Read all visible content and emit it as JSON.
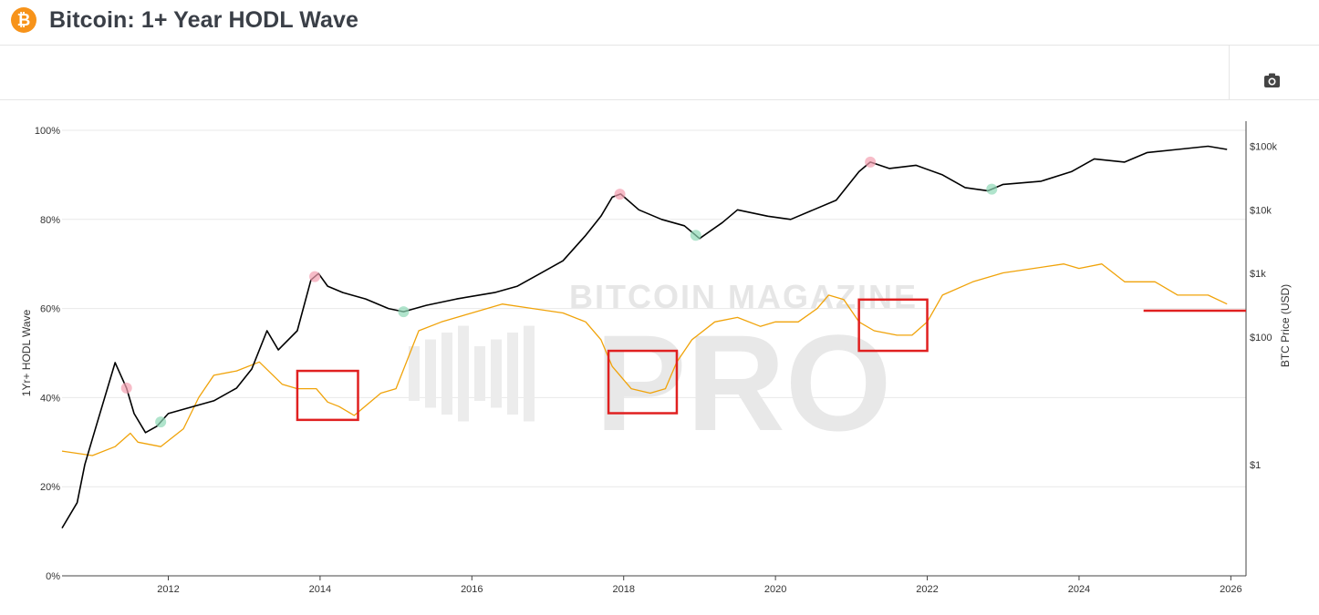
{
  "header": {
    "title": "Bitcoin: 1+ Year HODL Wave",
    "logo_glyph": "₿",
    "logo_color": "#f7931a",
    "screenshot_icon": "camera-icon"
  },
  "chart_data": {
    "type": "line",
    "title": "Bitcoin: 1+ Year HODL Wave",
    "ylabel": "1Yr+ HODL Wave",
    "y2label": "BTC Price (USD)",
    "xlabel": "",
    "xlim": [
      2010.6,
      2026.2
    ],
    "ylim": [
      0,
      100
    ],
    "y2lim_log10": [
      -1.75,
      5.25
    ],
    "y2scale": "log",
    "x_ticks": [
      "2012",
      "2014",
      "2016",
      "2018",
      "2020",
      "2022",
      "2024",
      "2026"
    ],
    "x_tick_values": [
      2012,
      2014,
      2016,
      2018,
      2020,
      2022,
      2024,
      2026
    ],
    "y_ticks": [
      "0%",
      "20%",
      "40%",
      "60%",
      "80%",
      "100%"
    ],
    "y_tick_values": [
      0,
      20,
      40,
      60,
      80,
      100
    ],
    "y2_ticks": [
      "$1",
      "$100",
      "$1k",
      "$10k",
      "$100k"
    ],
    "y2_tick_values": [
      1,
      100,
      1000,
      10000,
      100000
    ],
    "grid": true,
    "watermark": {
      "line1": "BITCOIN MAGAZINE",
      "line2": "PRO"
    },
    "series": [
      {
        "axis": "left",
        "color": "#f0a30a",
        "x": [
          2010.6,
          2011.0,
          2011.3,
          2011.5,
          2011.6,
          2011.9,
          2012.2,
          2012.4,
          2012.6,
          2012.9,
          2013.2,
          2013.5,
          2013.7,
          2013.95,
          2014.1,
          2014.25,
          2014.45,
          2014.8,
          2015.0,
          2015.3,
          2015.6,
          2016.0,
          2016.4,
          2016.8,
          2017.2,
          2017.5,
          2017.7,
          2017.85,
          2018.1,
          2018.35,
          2018.55,
          2018.7,
          2018.9,
          2019.2,
          2019.5,
          2019.8,
          2020.0,
          2020.3,
          2020.55,
          2020.7,
          2020.9,
          2021.1,
          2021.3,
          2021.6,
          2021.8,
          2022.0,
          2022.2,
          2022.6,
          2023.0,
          2023.4,
          2023.8,
          2024.0,
          2024.3,
          2024.6,
          2025.0,
          2025.3,
          2025.7,
          2025.95
        ],
        "y": [
          28,
          27,
          29,
          32,
          30,
          29,
          33,
          40,
          45,
          46,
          48,
          43,
          42,
          42,
          39,
          38,
          36,
          41,
          42,
          55,
          57,
          59,
          61,
          60,
          59,
          57,
          53,
          47,
          42,
          41,
          42,
          48,
          53,
          57,
          58,
          56,
          57,
          57,
          60,
          63,
          62,
          57,
          55,
          54,
          54,
          57,
          63,
          66,
          68,
          69,
          70,
          69,
          70,
          66,
          66,
          63,
          63,
          61
        ]
      },
      {
        "axis": "right",
        "color": "#000000",
        "x": [
          2010.6,
          2010.8,
          2010.9,
          2011.05,
          2011.3,
          2011.45,
          2011.55,
          2011.7,
          2011.85,
          2012.0,
          2012.3,
          2012.6,
          2012.9,
          2013.1,
          2013.3,
          2013.45,
          2013.7,
          2013.88,
          2013.98,
          2014.1,
          2014.3,
          2014.6,
          2014.9,
          2015.1,
          2015.4,
          2015.8,
          2016.3,
          2016.6,
          2016.9,
          2017.2,
          2017.5,
          2017.7,
          2017.85,
          2017.96,
          2018.2,
          2018.5,
          2018.8,
          2019.0,
          2019.3,
          2019.5,
          2019.9,
          2020.2,
          2020.5,
          2020.8,
          2021.1,
          2021.25,
          2021.5,
          2021.85,
          2022.2,
          2022.5,
          2022.8,
          2023.0,
          2023.5,
          2023.9,
          2024.2,
          2024.6,
          2024.9,
          2025.3,
          2025.7,
          2025.95
        ],
        "y_log10": [
          -1.0,
          -0.6,
          0.0,
          0.6,
          1.6,
          1.2,
          0.8,
          0.5,
          0.6,
          0.8,
          0.9,
          1.0,
          1.2,
          1.5,
          2.1,
          1.8,
          2.1,
          2.9,
          3.0,
          2.8,
          2.7,
          2.6,
          2.45,
          2.4,
          2.5,
          2.6,
          2.7,
          2.8,
          3.0,
          3.2,
          3.6,
          3.9,
          4.2,
          4.25,
          4.0,
          3.85,
          3.75,
          3.55,
          3.8,
          4.0,
          3.9,
          3.85,
          4.0,
          4.15,
          4.6,
          4.75,
          4.65,
          4.7,
          4.55,
          4.35,
          4.3,
          4.4,
          4.45,
          4.6,
          4.8,
          4.75,
          4.9,
          4.95,
          5.0,
          4.95
        ]
      }
    ],
    "annotations": [
      {
        "type": "rect",
        "color": "#e02020",
        "x0": 2013.7,
        "x1": 2014.5,
        "y0": 35,
        "y1": 46
      },
      {
        "type": "rect",
        "color": "#e02020",
        "x0": 2017.8,
        "x1": 2018.7,
        "y0": 36.5,
        "y1": 50.5
      },
      {
        "type": "rect",
        "color": "#e02020",
        "x0": 2021.1,
        "x1": 2022.0,
        "y0": 50.5,
        "y1": 62
      },
      {
        "type": "hline",
        "color": "#e02020",
        "x0": 2024.85,
        "x1": 2026.2,
        "y": 59.5
      }
    ],
    "markers": [
      {
        "x": 2011.45,
        "series": 1,
        "kind": "top",
        "color": "#f4a0b0"
      },
      {
        "x": 2013.93,
        "series": 1,
        "kind": "top",
        "color": "#f4a0b0"
      },
      {
        "x": 2017.95,
        "series": 1,
        "kind": "top",
        "color": "#f4a0b0"
      },
      {
        "x": 2021.25,
        "series": 1,
        "kind": "top",
        "color": "#f4a0b0"
      },
      {
        "x": 2011.9,
        "series": 1,
        "kind": "bottom",
        "color": "#8fd9b6"
      },
      {
        "x": 2015.1,
        "series": 1,
        "kind": "bottom",
        "color": "#8fd9b6"
      },
      {
        "x": 2018.95,
        "series": 1,
        "kind": "bottom",
        "color": "#8fd9b6"
      },
      {
        "x": 2022.85,
        "series": 1,
        "kind": "bottom",
        "color": "#8fd9b6"
      }
    ]
  }
}
